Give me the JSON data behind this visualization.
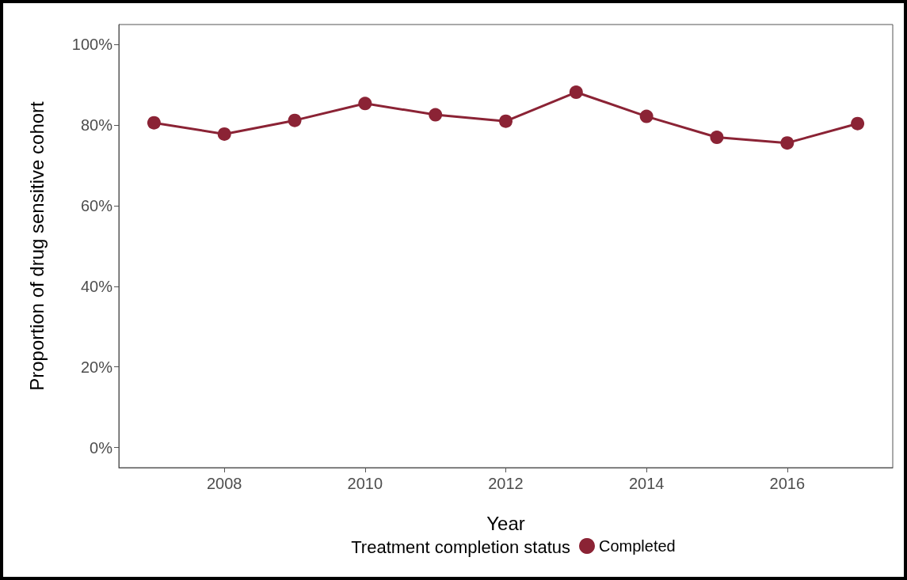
{
  "chart_data": {
    "type": "line",
    "xlabel": "Year",
    "ylabel": "Proportion of drug sensitive cohort",
    "legend_title": "Treatment completion status",
    "x": [
      2007,
      2008,
      2009,
      2010,
      2011,
      2012,
      2013,
      2014,
      2015,
      2016,
      2017
    ],
    "series": [
      {
        "name": "Completed",
        "color": "#8b2335",
        "values": [
          80.6,
          77.8,
          81.2,
          85.4,
          82.6,
          81.0,
          88.2,
          82.2,
          77.0,
          75.6,
          80.4
        ]
      }
    ],
    "xlim": [
      2006.5,
      2017.5
    ],
    "xticks": [
      2008,
      2010,
      2012,
      2014,
      2016
    ],
    "ylim": [
      -5,
      105
    ],
    "yticks": [
      {
        "value": 0,
        "label": "0%"
      },
      {
        "value": 20,
        "label": "20%"
      },
      {
        "value": 40,
        "label": "40%"
      },
      {
        "value": 60,
        "label": "60%"
      },
      {
        "value": 80,
        "label": "80%"
      },
      {
        "value": 100,
        "label": "100%"
      }
    ],
    "grid": false,
    "legend": "bottom",
    "marker": "circle",
    "line_style": "solid"
  }
}
